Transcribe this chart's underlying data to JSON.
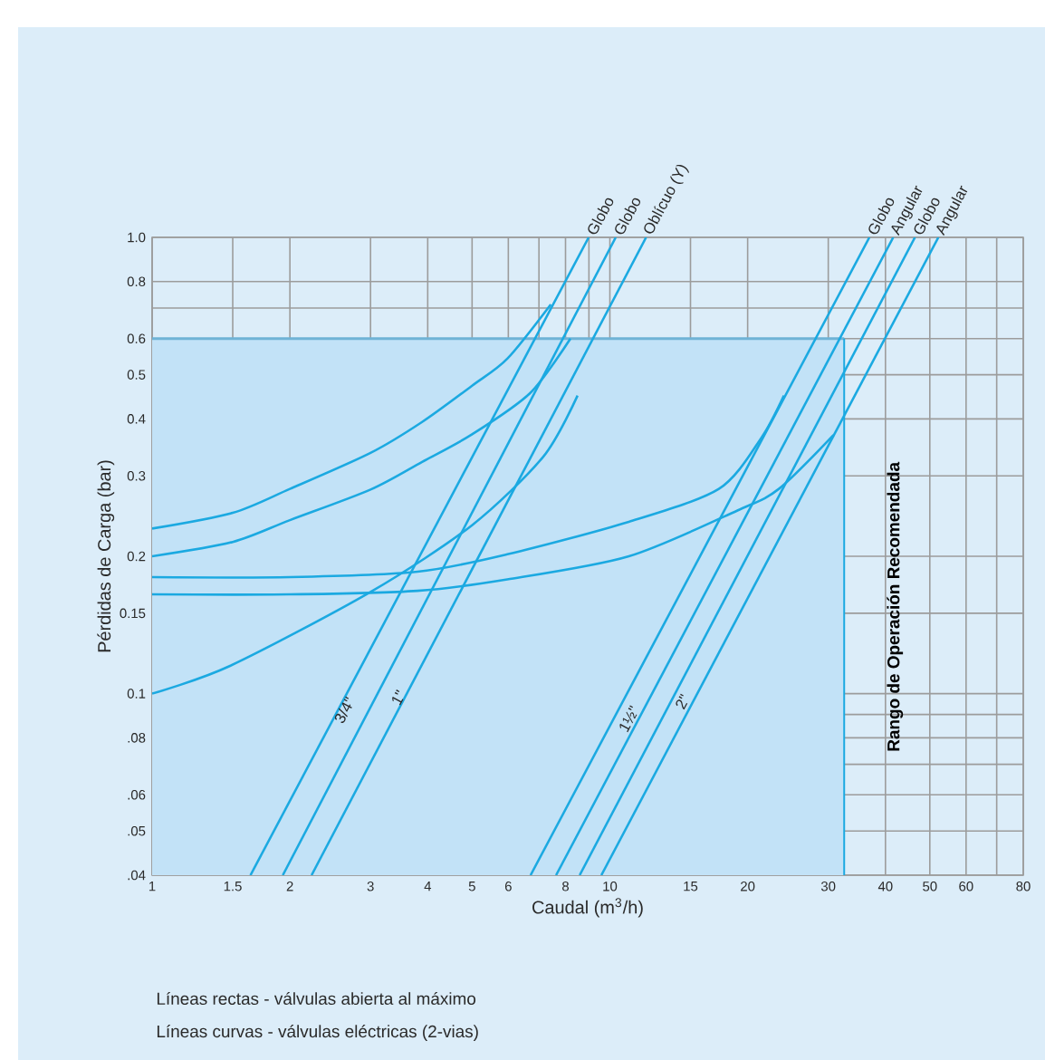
{
  "chart_data": {
    "type": "line",
    "log": "xy",
    "grid": true,
    "xlabel": "Caudal (m$^{3}$/h)",
    "ylabel": "Pérdidas de Carga (bar)",
    "xlim": [
      1,
      80
    ],
    "ylim": [
      0.04,
      1
    ],
    "xticks": [
      1,
      1.5,
      2,
      3,
      4,
      5,
      6,
      {
        "value": 7,
        "label": null
      },
      8,
      {
        "value": 9,
        "label": null
      },
      10,
      15,
      20,
      30,
      40,
      50,
      60,
      {
        "value": 70,
        "label": null
      },
      80
    ],
    "yticks": [
      {
        "value": 0.04,
        "label": ".04"
      },
      {
        "value": 0.05,
        "label": ".05"
      },
      {
        "value": 0.06,
        "label": ".06"
      },
      {
        "value": 0.07,
        "label": null
      },
      {
        "value": 0.08,
        "label": ".08"
      },
      {
        "value": 0.09,
        "label": null
      },
      0.1,
      0.15,
      0.2,
      0.3,
      0.4,
      0.5,
      0.6,
      {
        "value": 0.7,
        "label": null
      },
      0.8,
      {
        "value": 1,
        "label": "1.0"
      }
    ],
    "series": [
      {
        "color": "#1ba9e1",
        "x": [
          1.64,
          8.99
        ],
        "values": [
          0.04,
          1
        ]
      },
      {
        "color": "#1ba9e1",
        "x": [
          1.93,
          10.3
        ],
        "values": [
          0.04,
          1
        ]
      },
      {
        "color": "#1ba9e1",
        "x": [
          2.23,
          12.0
        ],
        "values": [
          0.04,
          1
        ]
      },
      {
        "color": "#1ba9e1",
        "x": [
          6.71,
          36.9
        ],
        "values": [
          0.04,
          1
        ]
      },
      {
        "color": "#1ba9e1",
        "x": [
          7.63,
          41.6
        ],
        "values": [
          0.04,
          1
        ]
      },
      {
        "color": "#1ba9e1",
        "x": [
          8.59,
          46.4
        ],
        "values": [
          0.04,
          1
        ]
      },
      {
        "color": "#1ba9e1",
        "x": [
          9.58,
          52.2
        ],
        "values": [
          0.04,
          1
        ]
      },
      {
        "color": "#1ba9e1",
        "x": [
          1,
          1.5,
          2,
          3,
          3.89,
          5,
          5.97,
          7.43
        ],
        "values": [
          0.23,
          0.249,
          0.281,
          0.337,
          0.394,
          0.473,
          0.542,
          0.713
        ]
      },
      {
        "color": "#1ba9e1",
        "x": [
          1,
          1.5,
          2,
          3,
          3.89,
          5,
          6.7,
          8.2
        ],
        "values": [
          0.2,
          0.215,
          0.24,
          0.28,
          0.322,
          0.37,
          0.456,
          0.6
        ]
      },
      {
        "color": "#1ba9e1",
        "x": [
          1,
          1.48,
          3,
          5,
          7.16,
          8.5
        ],
        "values": [
          0.1,
          0.115,
          0.167,
          0.234,
          0.331,
          0.45
        ]
      },
      {
        "color": "#1ba9e1",
        "x": [
          1,
          2,
          3.8,
          5.97,
          11,
          17.3,
          21.4,
          24
        ],
        "values": [
          0.18,
          0.18,
          0.185,
          0.202,
          0.238,
          0.281,
          0.363,
          0.45
        ]
      },
      {
        "color": "#1ba9e1",
        "x": [
          1,
          2,
          3.8,
          5.97,
          11,
          19,
          23.4,
          30.8
        ],
        "values": [
          0.165,
          0.165,
          0.168,
          0.178,
          0.2,
          0.252,
          0.281,
          0.369
        ]
      }
    ],
    "bands": [
      {
        "axis": "x",
        "from": 1,
        "to": 32.5,
        "label": "Rango de Operación Recomendada",
        "color": "#c2e2f7"
      }
    ],
    "ref_lines": [
      {
        "axis": "y",
        "value": 0.6,
        "color": "#6fb3d6"
      },
      {
        "axis": "x",
        "value": 32.5,
        "color": "#1ba9e1"
      }
    ],
    "annotations": [
      {
        "text": "Globo",
        "x": 8.99,
        "y": 1
      },
      {
        "text": "Globo",
        "x": 10.3,
        "y": 1
      },
      {
        "text": "Oblícuo (Y)",
        "x": 12.0,
        "y": 1
      },
      {
        "text": "Globo",
        "x": 36.9,
        "y": 1
      },
      {
        "text": "Angular",
        "x": 41.6,
        "y": 1
      },
      {
        "text": "Globo",
        "x": 46.4,
        "y": 1
      },
      {
        "text": "Angular",
        "x": 52.2,
        "y": 1
      },
      {
        "text": "3/4\"",
        "x": 2.63,
        "y": 0.092
      },
      {
        "text": "1\"",
        "x": 3.45,
        "y": 0.098
      },
      {
        "text": "1½\"",
        "x": 11.0,
        "y": 0.088
      },
      {
        "text": "2\"",
        "x": 14.4,
        "y": 0.096
      },
      "Líneas rectas - válvulas abierta al máximo",
      "Líneas curvas - válvulas eléctricas (2-vias)"
    ]
  }
}
